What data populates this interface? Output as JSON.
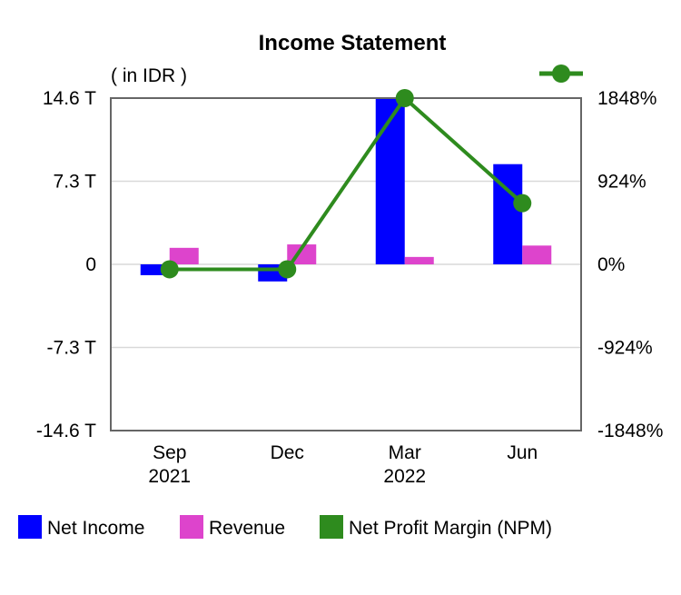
{
  "chart_data": {
    "type": "bar",
    "title": "Income Statement",
    "unit_label": "( in IDR )",
    "categories": [
      "Sep\n2021",
      "Dec",
      "Mar\n2022",
      "Jun"
    ],
    "y_left": {
      "ylim": [
        -14.6,
        14.6
      ],
      "ticks": [
        14.6,
        7.3,
        0,
        -7.3,
        -14.6
      ],
      "tick_labels": [
        "14.6 T",
        "7.3 T",
        "0",
        "-7.3 T",
        "-14.6 T"
      ],
      "unit": "T"
    },
    "y_right": {
      "ylim": [
        -1848,
        1848
      ],
      "ticks": [
        1848,
        924,
        0,
        -924,
        -1848
      ],
      "tick_labels": [
        "1848%",
        "924%",
        "0%",
        "-924%",
        "-1848%"
      ]
    },
    "series": [
      {
        "name": "Net Income",
        "kind": "bar",
        "axis": "left",
        "color": "#0000ff",
        "values": [
          -0.95,
          -1.5,
          14.6,
          8.8
        ]
      },
      {
        "name": "Revenue",
        "kind": "bar",
        "axis": "left",
        "color": "#dd44cc",
        "values": [
          1.45,
          1.75,
          0.65,
          1.65
        ]
      },
      {
        "name": "Net Profit Margin (NPM)",
        "kind": "line",
        "axis": "right",
        "color": "#2e8b1e",
        "values": [
          -55,
          -55,
          1848,
          680
        ]
      }
    ],
    "grid": true,
    "legend_position": "bottom"
  }
}
